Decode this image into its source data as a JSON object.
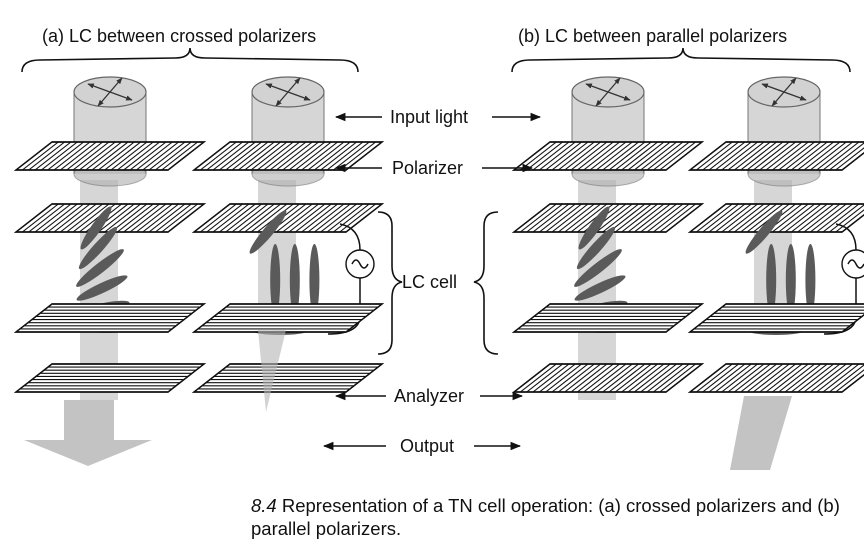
{
  "header": {
    "left": "(a) LC between crossed polarizers",
    "right": "(b) LC between parallel polarizers"
  },
  "labels": {
    "input_light": "Input light",
    "polarizer": "Polarizer",
    "lc_cell": "LC cell",
    "analyzer": "Analyzer",
    "output": "Output"
  },
  "caption": {
    "number": "8.4",
    "text": "Representation of a TN cell operation: (a) crossed polarizers and (b) parallel polarizers."
  },
  "icons": [
    "double-arrow-icon",
    "ac-source-icon"
  ],
  "colors": {
    "beam": "#b4b4b4",
    "molecule": "#5a5a5a",
    "line": "#111111"
  }
}
